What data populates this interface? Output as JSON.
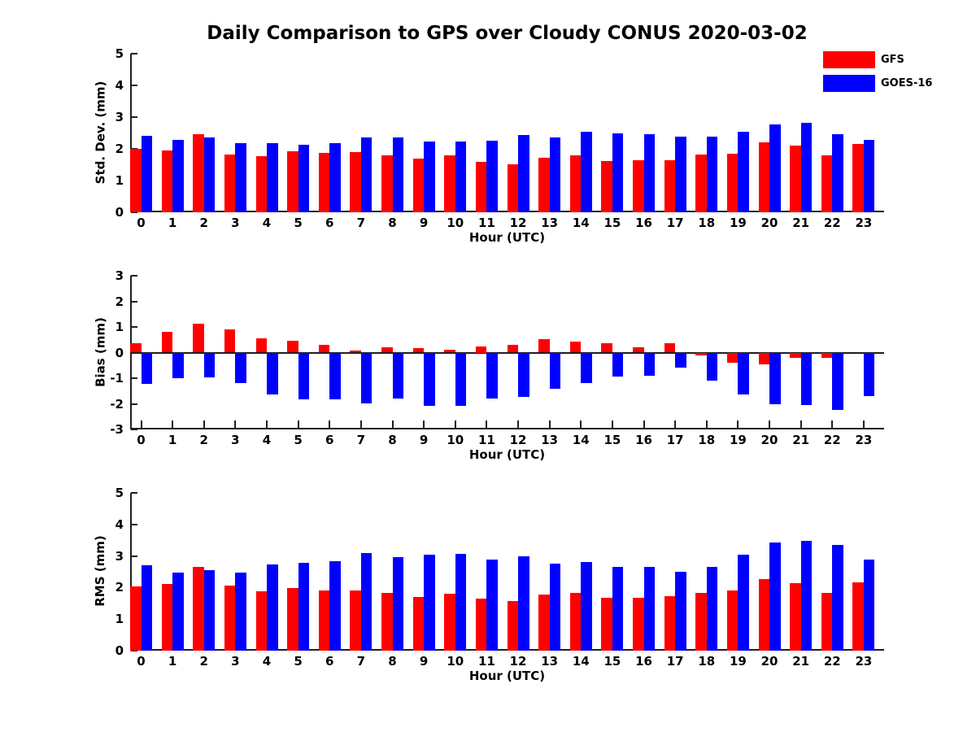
{
  "title": "Daily Comparison to GPS over Cloudy CONUS 2020-03-02",
  "legend": {
    "position": "top-right",
    "items": [
      {
        "label": "GFS",
        "color": "#ff0000"
      },
      {
        "label": "GOES-16",
        "color": "#0000ff"
      }
    ]
  },
  "colors": {
    "gfs": "#ff0000",
    "goes16": "#0000ff",
    "axis": "#1f1f1f",
    "text": "#000000"
  },
  "chart_data": [
    {
      "type": "bar",
      "title": "",
      "ylabel": "Std. Dev. (mm)",
      "xlabel": "Hour (UTC)",
      "ylim": [
        0,
        5
      ],
      "yticks": [
        0,
        1,
        2,
        3,
        4,
        5
      ],
      "grid": false,
      "categories": [
        0,
        1,
        2,
        3,
        4,
        5,
        6,
        7,
        8,
        9,
        10,
        11,
        12,
        13,
        14,
        15,
        16,
        17,
        18,
        19,
        20,
        21,
        22,
        23
      ],
      "series": [
        {
          "name": "GFS",
          "color": "#ff0000",
          "values": [
            2.0,
            1.95,
            2.45,
            1.82,
            1.78,
            1.92,
            1.87,
            1.9,
            1.8,
            1.7,
            1.8,
            1.6,
            1.52,
            1.72,
            1.8,
            1.62,
            1.65,
            1.65,
            1.82,
            1.85,
            2.2,
            2.1,
            1.8,
            2.15
          ]
        },
        {
          "name": "GOES-16",
          "color": "#0000ff",
          "values": [
            2.4,
            2.27,
            2.35,
            2.18,
            2.18,
            2.12,
            2.18,
            2.37,
            2.36,
            2.23,
            2.22,
            2.25,
            2.43,
            2.36,
            2.55,
            2.49,
            2.46,
            2.39,
            2.38,
            2.55,
            2.78,
            2.83,
            2.46,
            2.28
          ]
        }
      ]
    },
    {
      "type": "bar",
      "title": "",
      "ylabel": "Bias (mm)",
      "xlabel": "Hour (UTC)",
      "ylim": [
        -3,
        3
      ],
      "yticks": [
        -3,
        -2,
        -1,
        0,
        1,
        2,
        3
      ],
      "grid": false,
      "show_x_tick_marks": true,
      "categories": [
        0,
        1,
        2,
        3,
        4,
        5,
        6,
        7,
        8,
        9,
        10,
        11,
        12,
        13,
        14,
        15,
        16,
        17,
        18,
        19,
        20,
        21,
        22,
        23
      ],
      "series": [
        {
          "name": "GFS",
          "color": "#ff0000",
          "values": [
            0.35,
            0.82,
            1.12,
            0.9,
            0.55,
            0.47,
            0.3,
            0.07,
            0.22,
            0.16,
            0.12,
            0.25,
            0.3,
            0.52,
            0.43,
            0.35,
            0.22,
            0.38,
            -0.12,
            -0.4,
            -0.45,
            -0.2,
            -0.22,
            0.0
          ]
        },
        {
          "name": "GOES-16",
          "color": "#0000ff",
          "values": [
            -1.22,
            -1.0,
            -0.98,
            -1.18,
            -1.65,
            -1.82,
            -1.83,
            -1.98,
            -1.78,
            -2.09,
            -2.09,
            -1.78,
            -1.72,
            -1.4,
            -1.2,
            -0.95,
            -0.9,
            -0.58,
            -1.1,
            -1.65,
            -2.0,
            -2.05,
            -2.25,
            -1.7
          ]
        }
      ]
    },
    {
      "type": "bar",
      "title": "",
      "ylabel": "RMS (mm)",
      "xlabel": "Hour (UTC)",
      "ylim": [
        0,
        5
      ],
      "yticks": [
        0,
        1,
        2,
        3,
        4,
        5
      ],
      "grid": false,
      "categories": [
        0,
        1,
        2,
        3,
        4,
        5,
        6,
        7,
        8,
        9,
        10,
        11,
        12,
        13,
        14,
        15,
        16,
        17,
        18,
        19,
        20,
        21,
        22,
        23
      ],
      "series": [
        {
          "name": "GFS",
          "color": "#ff0000",
          "values": [
            2.04,
            2.12,
            2.66,
            2.05,
            1.87,
            1.99,
            1.9,
            1.92,
            1.84,
            1.71,
            1.81,
            1.64,
            1.57,
            1.78,
            1.84,
            1.68,
            1.68,
            1.72,
            1.84,
            1.91,
            2.28,
            2.13,
            1.82,
            2.16
          ]
        },
        {
          "name": "GOES-16",
          "color": "#0000ff",
          "values": [
            2.7,
            2.48,
            2.56,
            2.48,
            2.73,
            2.78,
            2.84,
            3.1,
            2.96,
            3.04,
            3.06,
            2.89,
            3.0,
            2.76,
            2.81,
            2.65,
            2.66,
            2.49,
            2.66,
            3.04,
            3.42,
            3.47,
            3.34,
            2.89
          ]
        }
      ]
    }
  ]
}
